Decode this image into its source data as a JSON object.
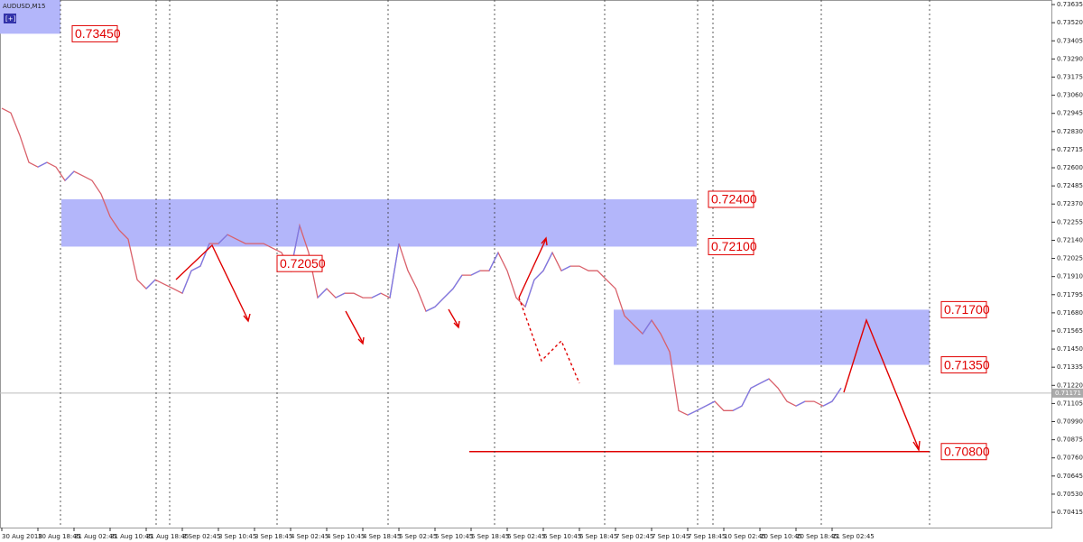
{
  "chart_data": {
    "type": "line",
    "title": "AUDUSD,M15",
    "button": "[+]",
    "x_labels": [
      "30 Aug 2018",
      "30 Aug 18:45",
      "31 Aug 02:45",
      "31 Aug 10:45",
      "31 Aug 18:45",
      "3 Sep 02:45",
      "3 Sep 10:45",
      "3 Sep 18:45",
      "4 Sep 02:45",
      "4 Sep 10:45",
      "4 Sep 18:45",
      "5 Sep 02:45",
      "5 Sep 10:45",
      "5 Sep 18:45",
      "6 Sep 02:45",
      "6 Sep 10:45",
      "6 Sep 18:45",
      "7 Sep 02:45",
      "7 Sep 10:45",
      "7 Sep 18:45",
      "10 Sep 02:45",
      "10 Sep 10:45",
      "10 Sep 18:45",
      "11 Sep 02:45"
    ],
    "series": [
      {
        "name": "AUDUSD",
        "color": "#d9606a",
        "values": [
          0.72977,
          0.72948,
          0.72805,
          0.72634,
          0.72605,
          0.72634,
          0.72605,
          0.72519,
          0.72577,
          0.72548,
          0.72519,
          0.72433,
          0.7229,
          0.72205,
          0.72147,
          0.7189,
          0.71833,
          0.7189,
          0.71861,
          0.71833,
          0.71804,
          0.71947,
          0.71976,
          0.72119,
          0.72119,
          0.72176,
          0.72147,
          0.72119,
          0.72119,
          0.72119,
          0.7209,
          0.72062,
          0.71947,
          0.72233,
          0.72062,
          0.71776,
          0.71833,
          0.71776,
          0.71804,
          0.71804,
          0.71776,
          0.71776,
          0.71804,
          0.71776,
          0.72119,
          0.71947,
          0.71833,
          0.7169,
          0.71718,
          0.71776,
          0.71833,
          0.71919,
          0.71919,
          0.71947,
          0.71947,
          0.72062,
          0.71947,
          0.71776,
          0.71718,
          0.7189,
          0.71947,
          0.72062,
          0.71947,
          0.71976,
          0.71976,
          0.71947,
          0.71947,
          0.7189,
          0.71833,
          0.71661,
          0.71604,
          0.71547,
          0.71633,
          0.71547,
          0.71432,
          0.7106,
          0.71032,
          0.7106,
          0.71089,
          0.71118,
          0.7106,
          0.7106,
          0.71089,
          0.71203,
          0.71232,
          0.71261,
          0.71203,
          0.71118,
          0.71089,
          0.71118,
          0.71118,
          0.71089,
          0.71118,
          0.71203
        ]
      }
    ],
    "ylim": [
      0.70318,
      0.73664
    ],
    "yticks": [
      0.73635,
      {
        "value": 0.7352,
        "label": "0.73520"
      },
      0.73405,
      {
        "value": 0.7329,
        "label": "0.73290"
      },
      0.73175,
      {
        "value": 0.7306,
        "label": "0.73060"
      },
      0.72945,
      {
        "value": 0.7283,
        "label": "0.72830"
      },
      0.72715,
      {
        "value": 0.726,
        "label": "0.72600"
      },
      0.72485,
      {
        "value": 0.7237,
        "label": "0.72370"
      },
      0.72255,
      {
        "value": 0.7214,
        "label": "0.72140"
      },
      0.72025,
      {
        "value": 0.7191,
        "label": "0.71910"
      },
      0.71795,
      {
        "value": 0.7168,
        "label": "0.71680"
      },
      0.71565,
      {
        "value": 0.7145,
        "label": "0.71450"
      },
      0.71335,
      {
        "value": 0.7122,
        "label": "0.71220"
      },
      0.71105,
      {
        "value": 0.7099,
        "label": "0.70990"
      },
      0.70875,
      {
        "value": 0.7076,
        "label": "0.70760"
      },
      0.70645,
      {
        "value": 0.7053,
        "label": "0.70530"
      },
      0.70415
    ],
    "current_price": 0.71171,
    "levels": [
      {
        "value": 0.7345,
        "label": "0.73450"
      },
      {
        "value": 0.724,
        "label": "0.72400"
      },
      {
        "value": 0.721,
        "label": "0.72100"
      },
      {
        "value": 0.7205,
        "label": "0.72050"
      },
      {
        "value": 0.717,
        "label": "0.71700"
      },
      {
        "value": 0.7135,
        "label": "0.71350"
      },
      {
        "value": 0.708,
        "label": "0.70800"
      }
    ],
    "zone_color": "#b3b6fa"
  }
}
